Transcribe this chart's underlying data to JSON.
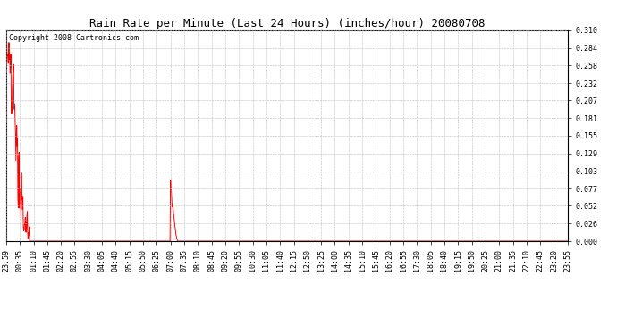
{
  "title": "Rain Rate per Minute (Last 24 Hours) (inches/hour) 20080708",
  "copyright_text": "Copyright 2008 Cartronics.com",
  "line_color": "#ff0000",
  "bg_color": "#ffffff",
  "plot_bg_color": "#ffffff",
  "grid_color": "#bbbbbb",
  "text_color": "#000000",
  "ylim": [
    0.0,
    0.31
  ],
  "yticks": [
    0.0,
    0.026,
    0.052,
    0.077,
    0.103,
    0.129,
    0.155,
    0.181,
    0.207,
    0.232,
    0.258,
    0.284,
    0.31
  ],
  "xtick_labels": [
    "23:59",
    "00:35",
    "01:10",
    "01:45",
    "02:20",
    "02:55",
    "03:30",
    "04:05",
    "04:40",
    "05:15",
    "05:50",
    "06:25",
    "07:00",
    "07:35",
    "08:10",
    "08:45",
    "09:20",
    "09:55",
    "10:30",
    "11:05",
    "11:40",
    "12:15",
    "12:50",
    "13:25",
    "14:00",
    "14:35",
    "15:10",
    "15:45",
    "16:20",
    "16:55",
    "17:30",
    "18:05",
    "18:40",
    "19:15",
    "19:50",
    "20:25",
    "21:00",
    "21:35",
    "22:10",
    "22:45",
    "23:20",
    "23:55"
  ],
  "num_points": 1440,
  "title_fontsize": 9,
  "tick_fontsize": 6,
  "copyright_fontsize": 6
}
